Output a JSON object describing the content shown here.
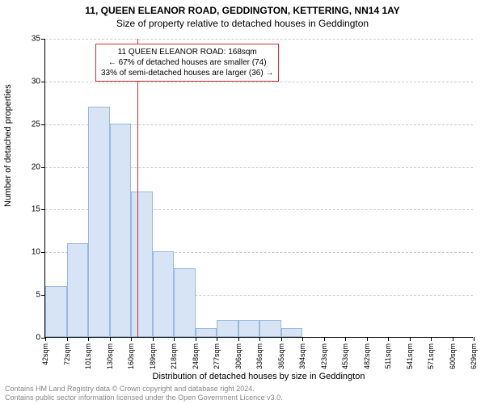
{
  "titles": {
    "main": "11, QUEEN ELEANOR ROAD, GEDDINGTON, KETTERING, NN14 1AY",
    "sub": "Size of property relative to detached houses in Geddington"
  },
  "axes": {
    "ylabel": "Number of detached properties",
    "xlabel": "Distribution of detached houses by size in Geddington",
    "ymax": 35,
    "yticks": [
      0,
      5,
      10,
      15,
      20,
      25,
      30,
      35
    ],
    "xlabels": [
      "42sqm",
      "72sqm",
      "101sqm",
      "130sqm",
      "160sqm",
      "189sqm",
      "218sqm",
      "248sqm",
      "277sqm",
      "306sqm",
      "336sqm",
      "365sqm",
      "394sqm",
      "423sqm",
      "453sqm",
      "482sqm",
      "511sqm",
      "541sqm",
      "571sqm",
      "600sqm",
      "629sqm"
    ]
  },
  "histogram": {
    "values": [
      6,
      11,
      27,
      25,
      17,
      10,
      8,
      1,
      2,
      2,
      2,
      1,
      0,
      0,
      0,
      0,
      0,
      0,
      0,
      0
    ],
    "bar_fill": "#d6e4f5",
    "bar_stroke": "#9bb8dd",
    "grid_color": "#cccccc"
  },
  "marker": {
    "value_sqm": 168,
    "x_range_start": 42,
    "x_range_end": 629,
    "line_color": "#d03030"
  },
  "annotation": {
    "border_color": "#d03030",
    "line1": "11 QUEEN ELEANOR ROAD: 168sqm",
    "line2": "← 67% of detached houses are smaller (74)",
    "line3": "33% of semi-detached houses are larger (36) →"
  },
  "footer": {
    "line1": "Contains HM Land Registry data © Crown copyright and database right 2024.",
    "line2": "Contains public sector information licensed under the Open Government Licence v3.0."
  }
}
